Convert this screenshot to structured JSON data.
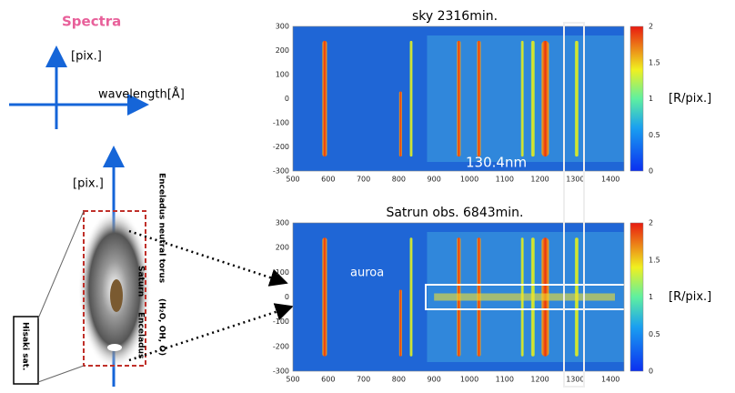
{
  "title": "Spectra",
  "diagram": {
    "y_label": "[pix.]",
    "x_label": "wavelength[Å]",
    "y_label_2": "[pix.]"
  },
  "saturn": {
    "torus": "Enceladus neutral torus",
    "saturn": "Saturn",
    "enceladus": "Enceladus",
    "species": "(H₂O, OH, O)",
    "satellite": "Hisaki sat."
  },
  "panels": [
    {
      "title": "sky 2316min.",
      "xticks": [
        500,
        600,
        700,
        800,
        900,
        1000,
        1100,
        1200,
        1300,
        1400
      ],
      "yticks": [
        300,
        200,
        100,
        0,
        -100,
        -200,
        -300
      ],
      "colorbar_ticks": [
        2,
        1.5,
        1,
        0.5,
        0
      ],
      "unit": "[R/pix.]",
      "annotation": "130.4nm"
    },
    {
      "title": "Satrun obs. 6843min.",
      "xticks": [
        500,
        600,
        700,
        800,
        900,
        1000,
        1100,
        1200,
        1300,
        1400
      ],
      "yticks": [
        300,
        200,
        100,
        0,
        -100,
        -200,
        -300
      ],
      "colorbar_ticks": [
        2,
        1.5,
        1,
        0.5,
        0
      ],
      "unit": "[R/pix.]",
      "annotation": "auroa"
    }
  ]
}
